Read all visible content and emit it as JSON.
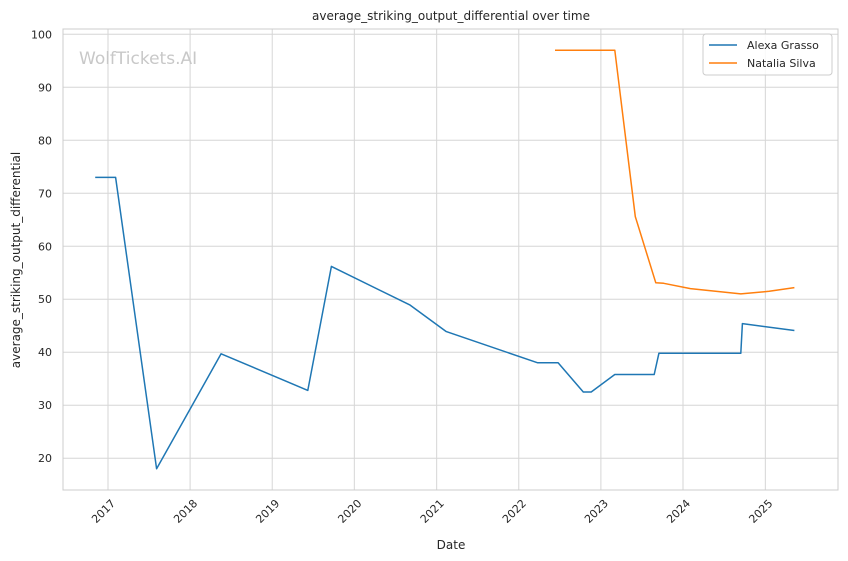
{
  "watermark": "WolfTickets.AI",
  "chart_data": {
    "type": "line",
    "title": "average_striking_output_differential over time",
    "xlabel": "Date",
    "ylabel": "average_striking_output_differential",
    "x_ticks": [
      "2017",
      "2018",
      "2019",
      "2020",
      "2021",
      "2022",
      "2023",
      "2024",
      "2025"
    ],
    "y_ticks": [
      20,
      30,
      40,
      50,
      60,
      70,
      80,
      90,
      100
    ],
    "xlim": [
      "2016-06-15",
      "2025-11-20"
    ],
    "ylim": [
      14,
      101
    ],
    "grid": true,
    "legend_position": "top-right",
    "series": [
      {
        "name": "Alexa Grasso",
        "color": "#1f77b4",
        "points": [
          [
            "2016-11-05",
            73.0
          ],
          [
            "2017-02-04",
            73.0
          ],
          [
            "2017-08-05",
            18.0
          ],
          [
            "2018-05-19",
            39.7
          ],
          [
            "2019-06-08",
            32.8
          ],
          [
            "2019-09-21",
            56.2
          ],
          [
            "2020-09-05",
            48.9
          ],
          [
            "2021-02-13",
            43.9
          ],
          [
            "2022-03-26",
            38.0
          ],
          [
            "2022-06-25",
            38.0
          ],
          [
            "2022-10-15",
            32.5
          ],
          [
            "2022-11-19",
            32.5
          ],
          [
            "2023-03-04",
            35.8
          ],
          [
            "2023-08-26",
            35.8
          ],
          [
            "2023-09-16",
            39.8
          ],
          [
            "2024-09-14",
            39.8
          ],
          [
            "2024-09-21",
            45.4
          ],
          [
            "2025-05-10",
            44.1
          ]
        ]
      },
      {
        "name": "Natalia Silva",
        "color": "#ff7f0e",
        "points": [
          [
            "2022-06-11",
            97.0
          ],
          [
            "2023-03-04",
            97.0
          ],
          [
            "2023-06-03",
            65.6
          ],
          [
            "2023-09-02",
            53.1
          ],
          [
            "2023-10-07",
            53.0
          ],
          [
            "2024-02-03",
            52.0
          ],
          [
            "2024-09-14",
            51.0
          ],
          [
            "2025-01-18",
            51.5
          ],
          [
            "2025-05-10",
            52.2
          ]
        ]
      }
    ]
  }
}
